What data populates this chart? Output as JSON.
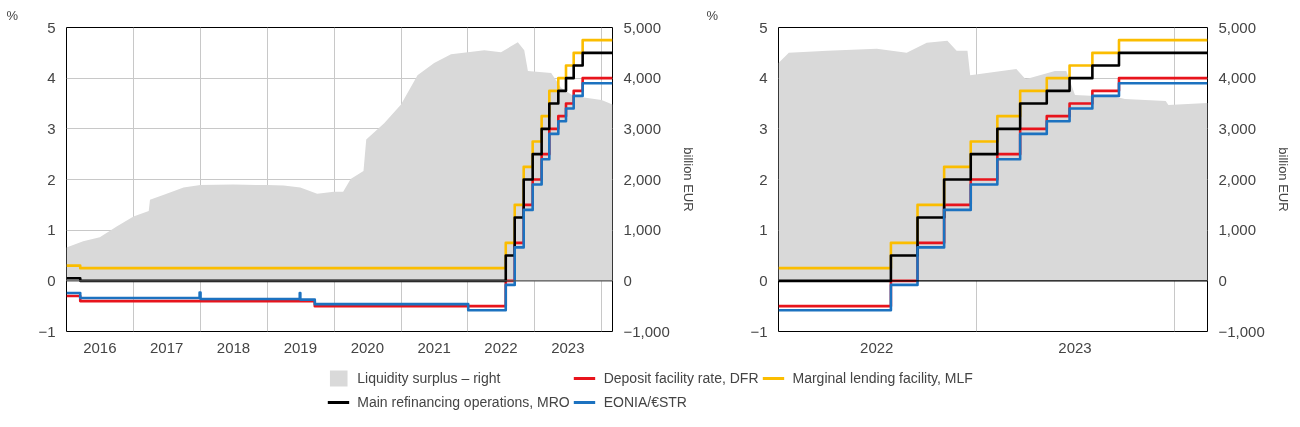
{
  "chart_data": [
    {
      "type": "step",
      "ylabel": "%",
      "y2label": "billion EUR",
      "legend": "bottom",
      "grid": true,
      "line_style": "solid",
      "xlim": [
        "2016-01-01",
        "2024-03-01"
      ],
      "xticks": [
        {
          "value": "2016-07-01",
          "label": "2016"
        },
        {
          "value": "2017-01-01",
          "label": null
        },
        {
          "value": "2017-07-01",
          "label": "2017"
        },
        {
          "value": "2018-01-01",
          "label": null
        },
        {
          "value": "2018-07-01",
          "label": "2018"
        },
        {
          "value": "2019-01-01",
          "label": null
        },
        {
          "value": "2019-07-01",
          "label": "2019"
        },
        {
          "value": "2020-01-01",
          "label": null
        },
        {
          "value": "2020-07-01",
          "label": "2020"
        },
        {
          "value": "2021-01-01",
          "label": null
        },
        {
          "value": "2021-07-01",
          "label": "2021"
        },
        {
          "value": "2022-01-01",
          "label": null
        },
        {
          "value": "2022-07-01",
          "label": "2022"
        },
        {
          "value": "2023-01-01",
          "label": null
        },
        {
          "value": "2023-07-01",
          "label": "2023"
        },
        {
          "value": "2024-01-01",
          "label": null
        }
      ],
      "ylim": [
        -1,
        5
      ],
      "yticks": [
        {
          "value": -1,
          "label": "−1"
        },
        0,
        1,
        2,
        3,
        4,
        5
      ],
      "y2lim": [
        -1000,
        5000
      ],
      "y2ticks": [
        {
          "value": -1000,
          "label": "−1,000"
        },
        0,
        {
          "value": 1000,
          "label": "1,000"
        },
        {
          "value": 2000,
          "label": "2,000"
        },
        {
          "value": 3000,
          "label": "3,000"
        },
        {
          "value": 4000,
          "label": "4,000"
        },
        {
          "value": 5000,
          "label": "5,000"
        }
      ],
      "ref_lines": [
        {
          "axis": "y",
          "value": 0,
          "color": "#555555"
        }
      ],
      "series": [
        {
          "name": "Liquidity surplus – right",
          "type": "area",
          "axis": "y2",
          "color": "#d9d9d9",
          "x": [
            "2016-01-01",
            "2016-04-01",
            "2016-07-01",
            "2016-10-01",
            "2017-01-01",
            "2017-03-25",
            "2017-04-01",
            "2017-07-01",
            "2017-10-01",
            "2018-01-01",
            "2018-07-01",
            "2019-01-01",
            "2019-04-01",
            "2019-07-01",
            "2019-10-01",
            "2020-01-01",
            "2020-02-20",
            "2020-04-01",
            "2020-06-10",
            "2020-06-25",
            "2020-10-01",
            "2021-01-01",
            "2021-04-01",
            "2021-07-01",
            "2021-10-01",
            "2022-01-01",
            "2022-04-01",
            "2022-07-01",
            "2022-10-01",
            "2022-11-05",
            "2022-11-25",
            "2023-04-01",
            "2023-05-25",
            "2023-08-01",
            "2024-01-01",
            "2024-03-01"
          ],
          "values": [
            660,
            780,
            860,
            1070,
            1270,
            1380,
            1600,
            1720,
            1840,
            1890,
            1900,
            1890,
            1880,
            1840,
            1720,
            1760,
            1760,
            2010,
            2170,
            2790,
            3110,
            3480,
            4060,
            4300,
            4470,
            4510,
            4550,
            4510,
            4710,
            4550,
            4140,
            4100,
            3810,
            3650,
            3570,
            3480
          ]
        },
        {
          "name": "Deposit facility rate, DFR",
          "color": "#e8141c",
          "x": [
            "2016-01-01",
            "2016-03-16",
            "2019-09-18",
            "2022-07-27",
            "2022-09-14",
            "2022-11-02",
            "2022-12-21",
            "2023-02-08",
            "2023-03-22",
            "2023-05-10",
            "2023-06-21",
            "2023-08-02",
            "2023-09-20",
            "2024-03-01"
          ],
          "values": [
            -0.3,
            -0.4,
            -0.5,
            0,
            0.75,
            1.5,
            2,
            2.5,
            3,
            3.25,
            3.5,
            3.75,
            4,
            4
          ]
        },
        {
          "name": "Marginal lending facility, MLF",
          "color": "#fbbd00",
          "x": [
            "2016-01-01",
            "2016-03-16",
            "2022-07-27",
            "2022-09-14",
            "2022-11-02",
            "2022-12-21",
            "2023-02-08",
            "2023-03-22",
            "2023-05-10",
            "2023-06-21",
            "2023-08-02",
            "2023-09-20",
            "2024-03-01"
          ],
          "values": [
            0.3,
            0.25,
            0.75,
            1.5,
            2.25,
            2.75,
            3.25,
            3.75,
            4,
            4.25,
            4.5,
            4.75,
            4.75
          ]
        },
        {
          "name": "Main refinancing operations, MRO",
          "color": "#000000",
          "x": [
            "2016-01-01",
            "2016-03-16",
            "2022-07-27",
            "2022-09-14",
            "2022-11-02",
            "2022-12-21",
            "2023-02-08",
            "2023-03-22",
            "2023-05-10",
            "2023-06-21",
            "2023-08-02",
            "2023-09-20",
            "2024-03-01"
          ],
          "values": [
            0.05,
            0,
            0.5,
            1.25,
            2,
            2.5,
            3,
            3.5,
            3.75,
            4,
            4.25,
            4.5,
            4.5
          ]
        },
        {
          "name": "EONIA/€STR",
          "color": "#1c72c0",
          "x": [
            "2016-01-01",
            "2016-03-16",
            "2017-12-28",
            "2018-01-02",
            "2019-06-28",
            "2019-07-01",
            "2019-09-18",
            "2022-01-03",
            "2022-07-27",
            "2022-09-14",
            "2022-11-02",
            "2022-12-21",
            "2023-02-08",
            "2023-03-22",
            "2023-05-10",
            "2023-06-21",
            "2023-08-02",
            "2023-09-20",
            "2024-03-01"
          ],
          "values": [
            -0.24,
            -0.34,
            -0.23,
            -0.36,
            -0.24,
            -0.37,
            -0.46,
            -0.58,
            -0.08,
            0.66,
            1.4,
            1.9,
            2.4,
            2.9,
            3.15,
            3.4,
            3.65,
            3.9,
            3.9
          ]
        }
      ]
    },
    {
      "type": "step",
      "ylabel": "%",
      "y2label": "billion EUR",
      "grid": true,
      "line_style": "solid",
      "xlim": [
        "2022-01-01",
        "2024-03-01"
      ],
      "xticks": [
        {
          "value": "2022-07-01",
          "label": "2022"
        },
        {
          "value": "2023-01-01",
          "label": null
        },
        {
          "value": "2023-07-01",
          "label": "2023"
        },
        {
          "value": "2024-01-01",
          "label": null
        }
      ],
      "ylim": [
        -1,
        5
      ],
      "yticks": [
        {
          "value": -1,
          "label": "−1"
        },
        0,
        1,
        2,
        3,
        4,
        5
      ],
      "y2lim": [
        -1000,
        5000
      ],
      "y2ticks": [
        {
          "value": -1000,
          "label": "−1,000"
        },
        0,
        {
          "value": 1000,
          "label": "1,000"
        },
        {
          "value": 2000,
          "label": "2,000"
        },
        {
          "value": 3000,
          "label": "3,000"
        },
        {
          "value": 4000,
          "label": "4,000"
        },
        {
          "value": 5000,
          "label": "5,000"
        }
      ],
      "ref_lines": [
        {
          "axis": "y",
          "value": 0,
          "color": "#000000"
        }
      ],
      "series": [
        {
          "type": "area",
          "axis": "y2",
          "color": "#d9d9d9",
          "x": [
            "2022-01-01",
            "2022-01-20",
            "2022-04-01",
            "2022-07-01",
            "2022-08-25",
            "2022-10-01",
            "2022-11-08",
            "2022-11-25",
            "2022-12-15",
            "2022-12-20",
            "2023-03-15",
            "2023-04-01",
            "2023-05-25",
            "2023-06-15",
            "2023-07-01",
            "2023-09-15",
            "2023-10-01",
            "2023-12-15",
            "2023-12-20",
            "2024-03-01"
          ],
          "values": [
            4300,
            4500,
            4540,
            4580,
            4500,
            4700,
            4740,
            4540,
            4540,
            4060,
            4180,
            3980,
            4140,
            4140,
            3670,
            3630,
            3590,
            3550,
            3470,
            3510
          ]
        },
        {
          "color": "#e8141c",
          "x": [
            "2022-01-01",
            "2022-07-27",
            "2022-09-14",
            "2022-11-02",
            "2022-12-21",
            "2023-02-08",
            "2023-03-22",
            "2023-05-10",
            "2023-06-21",
            "2023-08-02",
            "2023-09-20",
            "2024-03-01"
          ],
          "values": [
            -0.5,
            0,
            0.75,
            1.5,
            2,
            2.5,
            3,
            3.25,
            3.5,
            3.75,
            4,
            4
          ]
        },
        {
          "color": "#fbbd00",
          "x": [
            "2022-01-01",
            "2022-07-27",
            "2022-09-14",
            "2022-11-02",
            "2022-12-21",
            "2023-02-08",
            "2023-03-22",
            "2023-05-10",
            "2023-06-21",
            "2023-08-02",
            "2023-09-20",
            "2024-03-01"
          ],
          "values": [
            0.25,
            0.75,
            1.5,
            2.25,
            2.75,
            3.25,
            3.75,
            4,
            4.25,
            4.5,
            4.75,
            4.75
          ]
        },
        {
          "color": "#000000",
          "x": [
            "2022-01-01",
            "2022-07-27",
            "2022-09-14",
            "2022-11-02",
            "2022-12-21",
            "2023-02-08",
            "2023-03-22",
            "2023-05-10",
            "2023-06-21",
            "2023-08-02",
            "2023-09-20",
            "2024-03-01"
          ],
          "values": [
            0,
            0.5,
            1.25,
            2,
            2.5,
            3,
            3.5,
            3.75,
            4,
            4.25,
            4.5,
            4.5
          ]
        },
        {
          "color": "#1c72c0",
          "x": [
            "2022-01-01",
            "2022-07-27",
            "2022-09-14",
            "2022-11-02",
            "2022-12-21",
            "2023-02-08",
            "2023-03-22",
            "2023-05-10",
            "2023-06-21",
            "2023-08-02",
            "2023-09-20",
            "2024-03-01"
          ],
          "values": [
            -0.58,
            -0.08,
            0.66,
            1.4,
            1.9,
            2.4,
            2.9,
            3.15,
            3.4,
            3.65,
            3.9,
            3.9
          ]
        }
      ]
    }
  ]
}
